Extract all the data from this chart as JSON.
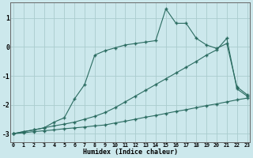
{
  "xlabel": "Humidex (Indice chaleur)",
  "bg_color": "#cce8ec",
  "grid_color": "#aaccce",
  "line_color": "#2a6b60",
  "xlim": [
    -0.3,
    23.3
  ],
  "ylim": [
    -3.3,
    1.55
  ],
  "yticks": [
    -3,
    -2,
    -1,
    0,
    1
  ],
  "xticks": [
    0,
    1,
    2,
    3,
    4,
    5,
    6,
    7,
    8,
    9,
    10,
    11,
    12,
    13,
    14,
    15,
    16,
    17,
    18,
    19,
    20,
    21,
    22,
    23
  ],
  "line1_x": [
    0,
    1,
    2,
    3,
    4,
    5,
    6,
    7,
    8,
    9,
    10,
    11,
    12,
    13,
    14,
    15,
    16,
    17,
    18,
    19,
    20,
    21,
    22,
    23
  ],
  "line1_y": [
    -3.0,
    -2.97,
    -2.93,
    -2.9,
    -2.87,
    -2.83,
    -2.8,
    -2.77,
    -2.73,
    -2.7,
    -2.63,
    -2.57,
    -2.5,
    -2.43,
    -2.37,
    -2.3,
    -2.23,
    -2.17,
    -2.1,
    -2.03,
    -1.97,
    -1.9,
    -1.83,
    -1.77
  ],
  "line2_x": [
    0,
    1,
    2,
    3,
    4,
    5,
    6,
    7,
    8,
    9,
    10,
    11,
    12,
    13,
    14,
    15,
    16,
    17,
    18,
    19,
    20,
    21,
    22,
    23
  ],
  "line2_y": [
    -3.0,
    -2.93,
    -2.87,
    -2.8,
    -2.73,
    -2.67,
    -2.6,
    -2.5,
    -2.4,
    -2.27,
    -2.1,
    -1.9,
    -1.7,
    -1.5,
    -1.3,
    -1.1,
    -0.9,
    -0.7,
    -0.5,
    -0.28,
    -0.1,
    0.3,
    -1.45,
    -1.7
  ],
  "line3_x": [
    0,
    1,
    2,
    3,
    4,
    5,
    6,
    7,
    8,
    9,
    10,
    11,
    12,
    13,
    14,
    15,
    16,
    17,
    18,
    19,
    20,
    21,
    22,
    23
  ],
  "line3_y": [
    -3.0,
    -2.93,
    -2.87,
    -2.8,
    -2.6,
    -2.45,
    -1.8,
    -1.3,
    -0.28,
    -0.13,
    -0.03,
    0.07,
    0.12,
    0.17,
    0.22,
    1.32,
    0.82,
    0.82,
    0.3,
    0.07,
    -0.05,
    0.12,
    -1.38,
    -1.65
  ]
}
